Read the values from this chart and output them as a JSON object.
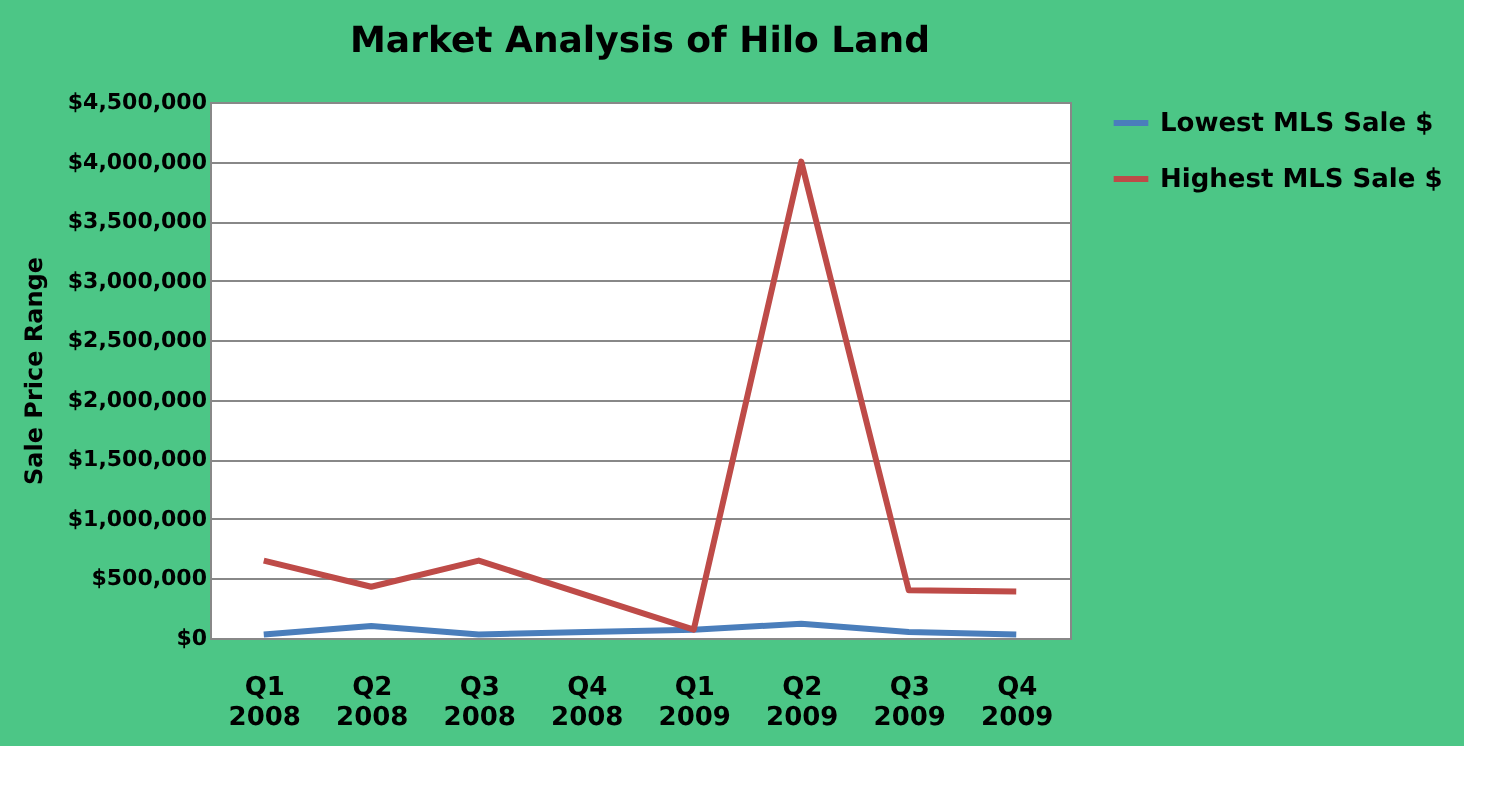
{
  "chart_data": {
    "type": "line",
    "title": "Market Analysis of Hilo Land",
    "ylabel": "Sale Price Range",
    "categories": [
      "Q1 2008",
      "Q2 2008",
      "Q3 2008",
      "Q4 2008",
      "Q1 2009",
      "Q2 2009",
      "Q3 2009",
      "Q4 2009"
    ],
    "series": [
      {
        "name": "Lowest MLS Sale $",
        "color": "#4a7ebb",
        "values": [
          30000,
          100000,
          30000,
          50000,
          70000,
          120000,
          50000,
          30000
        ]
      },
      {
        "name": "Highest MLS Sale $",
        "color": "#be4b48",
        "values": [
          650000,
          430000,
          650000,
          360000,
          70000,
          4000000,
          400000,
          390000
        ]
      }
    ],
    "ylim": [
      0,
      4500000
    ],
    "yticks": [
      {
        "value": 0,
        "label": "$0"
      },
      {
        "value": 500000,
        "label": "$500,000"
      },
      {
        "value": 1000000,
        "label": "$1,000,000"
      },
      {
        "value": 1500000,
        "label": "$1,500,000"
      },
      {
        "value": 2000000,
        "label": "$2,000,000"
      },
      {
        "value": 2500000,
        "label": "$2,500,000"
      },
      {
        "value": 3000000,
        "label": "$3,000,000"
      },
      {
        "value": 3500000,
        "label": "$3,500,000"
      },
      {
        "value": 4000000,
        "label": "$4,000,000"
      },
      {
        "value": 4500000,
        "label": "$4,500,000"
      }
    ],
    "grid": "y",
    "legend": "right",
    "marker": "none",
    "line_style": "solid"
  }
}
